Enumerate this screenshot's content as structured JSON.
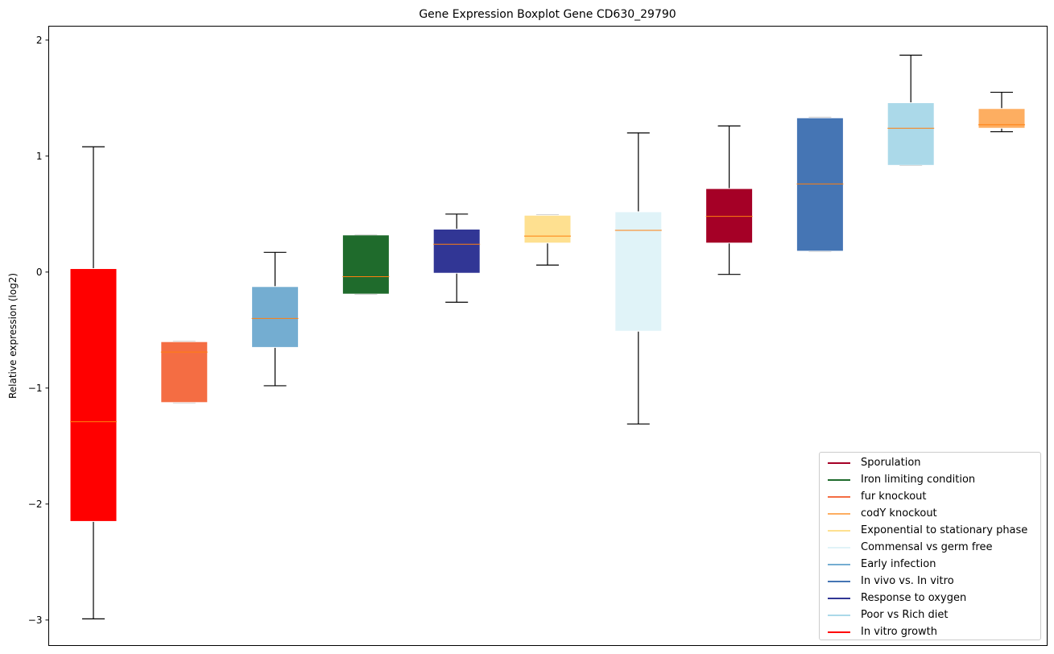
{
  "chart_data": {
    "type": "boxplot",
    "title": "Gene Expression Boxplot Gene CD630_29790",
    "xlabel": "",
    "ylabel": "Relative expression (log2)",
    "ylim": [
      -3.22,
      2.12
    ],
    "yticks": [
      -3,
      -2,
      -1,
      0,
      1,
      2
    ],
    "ytick_labels": [
      "−3",
      "−2",
      "−1",
      "0",
      "1",
      "2"
    ],
    "grid": false,
    "legend_position": "lower-right",
    "median_color": "#ff7f0e",
    "boxes": [
      {
        "name": "In vitro growth",
        "color": "#ff0000",
        "whislo": -2.99,
        "q1": -2.15,
        "med": -1.29,
        "q3": 0.03,
        "whishi": 1.08
      },
      {
        "name": "fur knockout",
        "color": "#f46d43",
        "whislo": -1.125,
        "q1": -1.125,
        "med": -0.69,
        "q3": -0.6,
        "whishi": -0.6
      },
      {
        "name": "Early infection",
        "color": "#74add1",
        "whislo": -0.98,
        "q1": -0.65,
        "med": -0.4,
        "q3": -0.125,
        "whishi": 0.17
      },
      {
        "name": "Iron limiting condition",
        "color": "#1f6b2c",
        "whislo": -0.19,
        "q1": -0.19,
        "med": -0.04,
        "q3": 0.32,
        "whishi": 0.32
      },
      {
        "name": "Response to oxygen",
        "color": "#313695",
        "whislo": -0.26,
        "q1": -0.01,
        "med": 0.24,
        "q3": 0.37,
        "whishi": 0.5
      },
      {
        "name": "Exponential to stationary phase",
        "color": "#fee090",
        "whislo": 0.06,
        "q1": 0.25,
        "med": 0.31,
        "q3": 0.49,
        "whishi": 0.49
      },
      {
        "name": "Commensal vs germ free",
        "color": "#e0f3f8",
        "whislo": -1.31,
        "q1": -0.51,
        "med": 0.36,
        "q3": 0.52,
        "whishi": 1.2
      },
      {
        "name": "Sporulation",
        "color": "#a50026",
        "whislo": -0.02,
        "q1": 0.25,
        "med": 0.48,
        "q3": 0.72,
        "whishi": 1.26
      },
      {
        "name": "In vivo vs. In vitro",
        "color": "#4575b4",
        "whislo": 0.18,
        "q1": 0.18,
        "med": 0.76,
        "q3": 1.33,
        "whishi": 1.33
      },
      {
        "name": "Poor vs Rich diet",
        "color": "#abd9e9",
        "whislo": 0.92,
        "q1": 0.92,
        "med": 1.24,
        "q3": 1.46,
        "whishi": 1.87
      },
      {
        "name": "codY knockout",
        "color": "#fdae61",
        "whislo": 1.21,
        "q1": 1.24,
        "med": 1.27,
        "q3": 1.41,
        "whishi": 1.55
      }
    ],
    "legend": [
      {
        "label": "Sporulation",
        "color": "#a50026"
      },
      {
        "label": "Iron limiting condition",
        "color": "#1f6b2c"
      },
      {
        "label": "fur knockout",
        "color": "#f46d43"
      },
      {
        "label": "codY knockout",
        "color": "#fdae61"
      },
      {
        "label": "Exponential to stationary phase",
        "color": "#fee090"
      },
      {
        "label": "Commensal vs germ free",
        "color": "#e0f3f8"
      },
      {
        "label": "Early infection",
        "color": "#74add1"
      },
      {
        "label": "In vivo vs. In vitro",
        "color": "#4575b4"
      },
      {
        "label": "Response to oxygen",
        "color": "#313695"
      },
      {
        "label": "Poor vs Rich diet",
        "color": "#abd9e9"
      },
      {
        "label": "In vitro growth",
        "color": "#ff0000"
      }
    ]
  }
}
